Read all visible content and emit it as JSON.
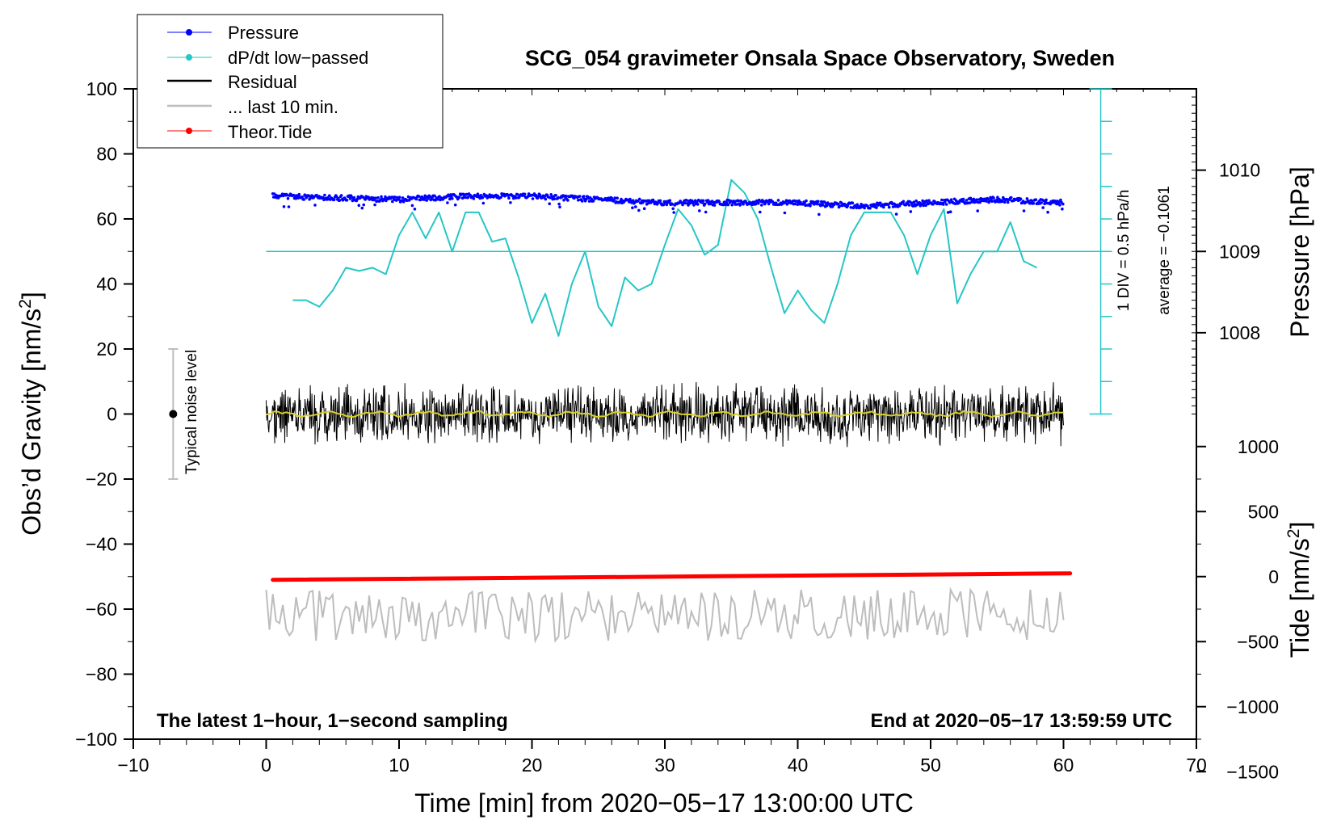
{
  "chart_data": {
    "type": "line",
    "title": "SCG_054 gravimeter Onsala Space Observatory, Sweden",
    "xlabel": "Time [min] from 2020−05−17 13:00:00 UTC",
    "ylabel_main": "Obs’d Gravity [nm/s",
    "ylabel_sup": "2",
    "ylabel_close": "]",
    "ylabel_pressure": "Pressure [hPa]",
    "ylabel_tide": "Tide [nm/s",
    "ylabel_tide_sup": "2",
    "ylabel_tide_close": "]",
    "xlim": [
      -10,
      70
    ],
    "ylim": [
      -100,
      100
    ],
    "x_ticks": [
      -10,
      0,
      10,
      20,
      30,
      40,
      50,
      60,
      70
    ],
    "x_tick_labels": [
      "−10",
      "0",
      "10",
      "20",
      "30",
      "40",
      "50",
      "60",
      "70"
    ],
    "y_ticks": [
      -100,
      -80,
      -60,
      -40,
      -20,
      0,
      20,
      40,
      60,
      80,
      100
    ],
    "y_tick_labels": [
      "−100",
      "−80",
      "−60",
      "−40",
      "−20",
      "0",
      "20",
      "40",
      "60",
      "80",
      "100"
    ],
    "pressure_axis": {
      "ticks": [
        1008,
        1009,
        1010
      ],
      "tick_labels": [
        "1008",
        "1009",
        "1010"
      ],
      "gravity_equivalent": [
        25,
        50,
        75
      ]
    },
    "tide_axis": {
      "ticks": [
        -1500,
        -1000,
        -500,
        0,
        500,
        1000
      ],
      "tick_labels": [
        "−1500",
        "−1000",
        "−500",
        "0",
        "500",
        "1000"
      ]
    },
    "legend": {
      "position": "top-left",
      "items": [
        {
          "label": "Pressure",
          "color": "#0000ff",
          "marker": "dot"
        },
        {
          "label": "dP/dt low−passed",
          "color": "#26c6c6",
          "marker": "dot"
        },
        {
          "label": "Residual",
          "color": "#000000",
          "marker": "none"
        },
        {
          "label": "... last 10 min.",
          "color": "#bdbdbd",
          "marker": "none"
        },
        {
          "label": "Theor.Tide",
          "color": "#ff0000",
          "marker": "dot"
        }
      ]
    },
    "dpdt_scale": {
      "line1": "1 DIV = 0.5 hPa/h",
      "line2": "average = −0.1061",
      "zero_level": 50,
      "range": [
        0,
        100
      ]
    },
    "noise_level": {
      "label": "Typical noise level",
      "x": -7,
      "y": 0,
      "range": [
        -20,
        20
      ]
    },
    "annotation_left": "The latest 1−hour, 1−second sampling",
    "annotation_right": "End at 2020−05−17 13:59:59 UTC",
    "series": [
      {
        "name": "Pressure",
        "color": "#0000ff",
        "x": [
          0.5,
          5,
          10,
          15,
          20,
          25,
          30,
          35,
          40,
          45,
          50,
          55,
          60
        ],
        "values": [
          67,
          66.5,
          66,
          67,
          67,
          66,
          65,
          65,
          65,
          64,
          65,
          66,
          65
        ]
      },
      {
        "name": "dP/dt low-passed",
        "color": "#26c6c6",
        "x": [
          2,
          3,
          4,
          5,
          6,
          7,
          8,
          9,
          10,
          11,
          12,
          13,
          14,
          15,
          16,
          17,
          18,
          19,
          20,
          21,
          22,
          23,
          24,
          25,
          26,
          27,
          28,
          29,
          30,
          31,
          32,
          33,
          34,
          35,
          36,
          37,
          38,
          39,
          40,
          41,
          42,
          43,
          44,
          45,
          46,
          47,
          48,
          49,
          50,
          51,
          52,
          53,
          54,
          55,
          56,
          57,
          58
        ],
        "values": [
          35,
          35,
          33,
          38,
          45,
          44,
          45,
          43,
          55,
          62,
          54,
          62,
          50,
          62,
          62,
          53,
          54,
          42,
          28,
          37,
          24,
          40,
          50,
          33,
          27,
          42,
          38,
          40,
          52,
          63,
          58,
          49,
          52,
          72,
          68,
          60,
          45,
          31,
          38,
          32,
          28,
          40,
          55,
          62,
          62,
          62,
          55,
          43,
          55,
          63,
          34,
          43,
          50,
          50,
          59,
          47,
          45
        ]
      },
      {
        "name": "Residual",
        "color": "#000000",
        "x": [
          0,
          60
        ],
        "values": [
          0,
          0
        ],
        "amplitude": 8
      },
      {
        "name": "... last 10 min.",
        "color": "#bdbdbd",
        "x": [
          0,
          60
        ],
        "values": [
          -62,
          -62
        ],
        "amplitude": 8
      },
      {
        "name": "Theor.Tide",
        "color": "#ff0000",
        "x": [
          0.5,
          60.5
        ],
        "values": [
          -51,
          -49
        ]
      }
    ]
  }
}
